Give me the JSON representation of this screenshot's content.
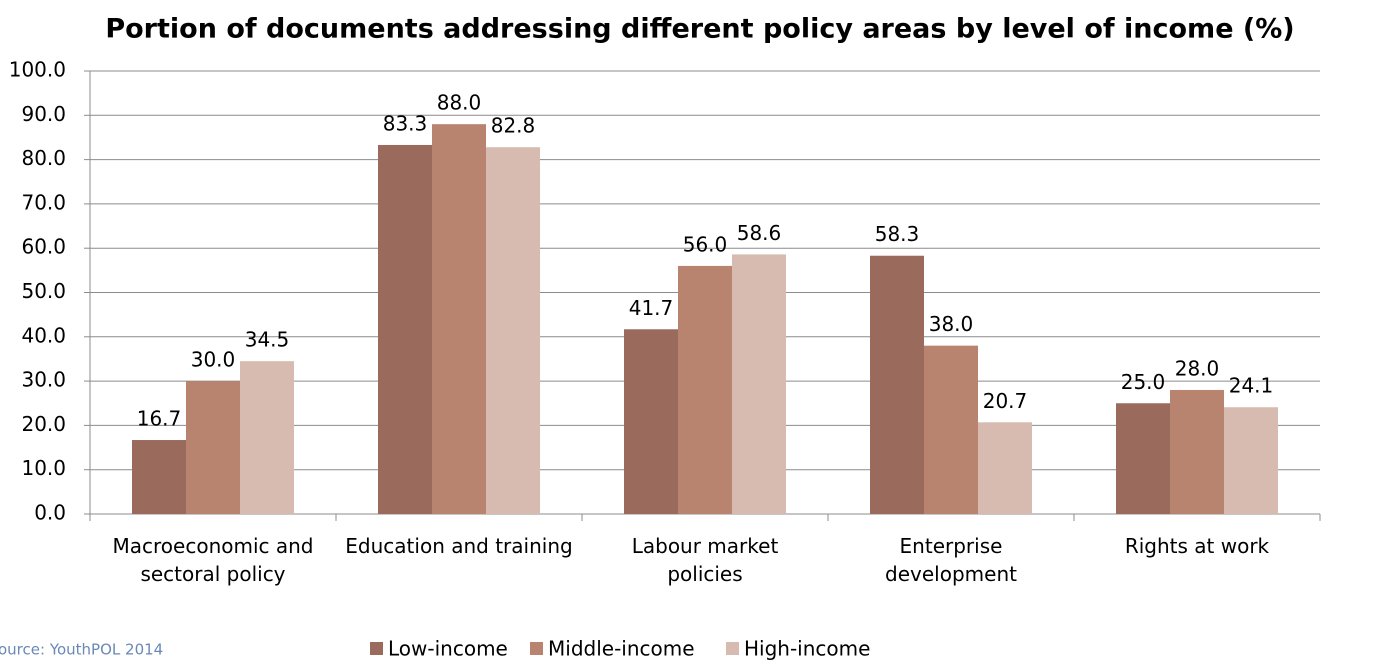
{
  "chart_data": {
    "type": "bar",
    "title": "Portion of documents addressing different policy areas by level of income (%)",
    "categories": [
      "Macroeconomic and\nsectoral policy",
      "Education and training",
      "Labour market\npolicies",
      "Enterprise\ndevelopment",
      "Rights at work"
    ],
    "series": [
      {
        "name": "Low-income",
        "color": "#9a6b5c",
        "values": [
          16.7,
          83.3,
          41.7,
          58.3,
          25
        ],
        "value_labels": [
          "16.7",
          "83.3",
          "41.7",
          "58.3",
          "25.0"
        ]
      },
      {
        "name": "Middle-income",
        "color": "#b8846f",
        "values": [
          30,
          88,
          56,
          38,
          28
        ],
        "value_labels": [
          "30.0",
          "88.0",
          "56.0",
          "38.0",
          "28.0"
        ]
      },
      {
        "name": "High-income",
        "color": "#d7bbb1",
        "values": [
          34.5,
          82.8,
          58.6,
          20.7,
          24.1
        ],
        "value_labels": [
          "34.5",
          "82.8",
          "58.6",
          "20.7",
          "24.1"
        ]
      }
    ],
    "ylim": [
      0,
      100
    ],
    "yticks": [
      {
        "value": 0,
        "label": "0.0"
      },
      {
        "value": 10,
        "label": "10.0"
      },
      {
        "value": 20,
        "label": "20.0"
      },
      {
        "value": 30,
        "label": "30.0"
      },
      {
        "value": 40,
        "label": "40.0"
      },
      {
        "value": 50,
        "label": "50.0"
      },
      {
        "value": 60,
        "label": "60.0"
      },
      {
        "value": 70,
        "label": "70.0"
      },
      {
        "value": 80,
        "label": "80.0"
      },
      {
        "value": 90,
        "label": "90.0"
      },
      {
        "value": 100,
        "label": "100.0"
      }
    ],
    "grid": true,
    "legend": "bottom",
    "source": "ource: YouthPOL 2014"
  }
}
